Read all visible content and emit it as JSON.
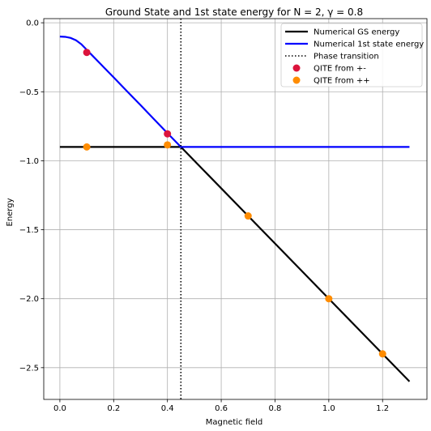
{
  "chart_data": {
    "type": "line",
    "title": "Ground State and 1st state energy for N = 2, γ = 0.8",
    "xlabel": "Magnetic field",
    "ylabel": "Energy",
    "xlim": [
      -0.06,
      1.365
    ],
    "ylim": [
      -2.73,
      0.03
    ],
    "xticks": [
      0.0,
      0.2,
      0.4,
      0.6,
      0.8,
      1.0,
      1.2
    ],
    "xtick_labels": [
      "0.0",
      "0.2",
      "0.4",
      "0.6",
      "0.8",
      "1.0",
      "1.2"
    ],
    "yticks": [
      0.0,
      -0.5,
      -1.0,
      -1.5,
      -2.0,
      -2.5
    ],
    "ytick_labels": [
      "0.0",
      "−0.5",
      "−1.0",
      "−1.5",
      "−2.0",
      "−2.5"
    ],
    "grid": true,
    "legend_position": "top-right",
    "series": [
      {
        "name": "Numerical GS energy",
        "kind": "line",
        "color": "#000000",
        "x": [
          0.0,
          0.45,
          1.3
        ],
        "y": [
          -0.9,
          -0.9,
          -2.6
        ]
      },
      {
        "name": "Numerical 1st state energy",
        "kind": "line",
        "color": "#0000ff",
        "x": [
          0.0,
          0.02,
          0.04,
          0.06,
          0.08,
          0.1,
          0.12,
          0.15,
          0.2,
          0.25,
          0.3,
          0.35,
          0.4,
          0.45,
          0.6,
          0.8,
          1.0,
          1.2,
          1.3
        ],
        "y": [
          -0.1,
          -0.102,
          -0.11,
          -0.127,
          -0.156,
          -0.196,
          -0.236,
          -0.296,
          -0.396,
          -0.497,
          -0.597,
          -0.699,
          -0.8,
          -0.9,
          -0.9,
          -0.9,
          -0.9,
          -0.9,
          -0.9
        ]
      },
      {
        "name": "Phase transition",
        "kind": "vline",
        "color": "#000000",
        "x": 0.45
      },
      {
        "name": "QITE from +-",
        "kind": "scatter",
        "color": "#dc143c",
        "x": [
          0.1,
          0.4
        ],
        "y": [
          -0.215,
          -0.805
        ]
      },
      {
        "name": "QITE from ++",
        "kind": "scatter",
        "color": "#ff8c00",
        "x": [
          0.1,
          0.4,
          0.7,
          1.0,
          1.2
        ],
        "y": [
          -0.9,
          -0.885,
          -1.4,
          -2.0,
          -2.4
        ]
      }
    ]
  }
}
